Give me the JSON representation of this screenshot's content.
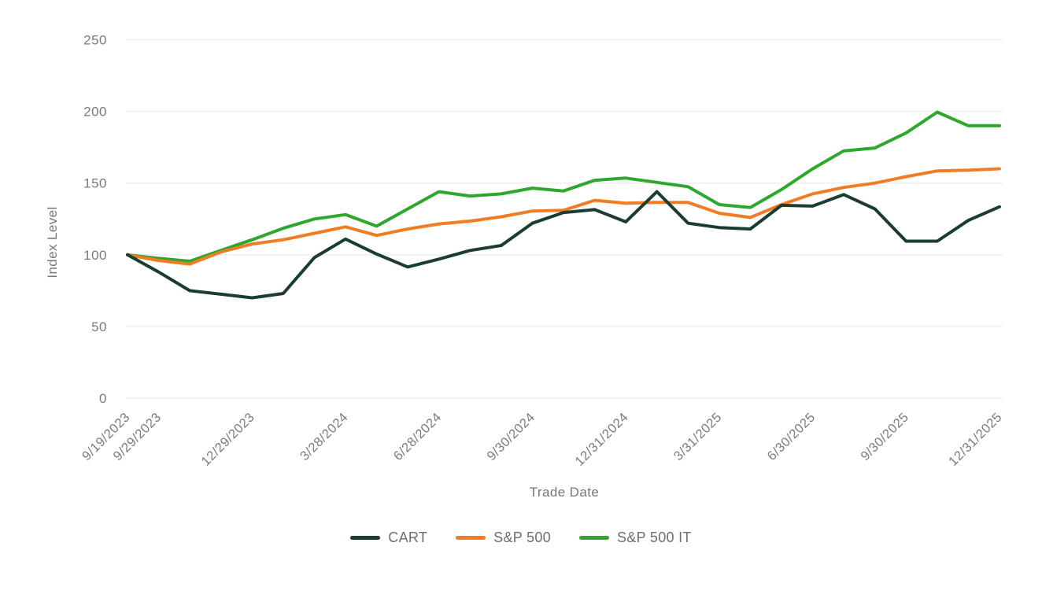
{
  "chart_data": {
    "type": "line",
    "title": "",
    "xlabel": "Trade Date",
    "ylabel": "Index Level",
    "ylim": [
      0,
      250
    ],
    "y_ticks": [
      0,
      50,
      100,
      150,
      200,
      250
    ],
    "grid": true,
    "legend_position": "bottom",
    "n_points": 29,
    "x_tick_labels": [
      "9/19/2023",
      "9/29/2023",
      "12/29/2023",
      "3/28/2024",
      "6/28/2024",
      "9/30/2024",
      "12/31/2024",
      "3/31/2025",
      "6/30/2025",
      "9/30/2025",
      "12/31/2025"
    ],
    "x_tick_indices": [
      0,
      1,
      4,
      7,
      10,
      13,
      16,
      19,
      22,
      25,
      28
    ],
    "series": [
      {
        "name": "CART",
        "color": "#1a3c33",
        "values": [
          100,
          88,
          75,
          72.5,
          70,
          73,
          98,
          111,
          100.5,
          91.5,
          97,
          103,
          106.5,
          122,
          129.5,
          131.5,
          123,
          144,
          122,
          119,
          118,
          134.5,
          134,
          142,
          132,
          109.5,
          109.5,
          124,
          133.5
        ]
      },
      {
        "name": "S&P 500",
        "color": "#f07d23",
        "values": [
          100,
          96,
          93.5,
          102,
          107.5,
          110.5,
          115,
          119.5,
          113.5,
          118,
          121.5,
          123.5,
          126.5,
          130.5,
          131,
          138,
          136,
          136.5,
          136.5,
          129,
          126,
          135,
          142.5,
          147,
          150,
          154.5,
          158.5,
          159,
          160
        ]
      },
      {
        "name": "S&P 500 IT",
        "color": "#2ea82c",
        "values": [
          100,
          97.5,
          95.5,
          103,
          110.5,
          118.5,
          125,
          128,
          120,
          132,
          144,
          141,
          142.5,
          146.5,
          144.5,
          152,
          153.5,
          150.5,
          147.5,
          135,
          133,
          145.5,
          160,
          172.5,
          174.5,
          185,
          199.5,
          190,
          190
        ]
      }
    ],
    "style": {
      "grid_color": "#ededed",
      "tick_text_color": "#7b7b7b",
      "axis_title_color": "#767676",
      "legend_text_color": "#6e6e6e",
      "line_width": 4
    }
  }
}
